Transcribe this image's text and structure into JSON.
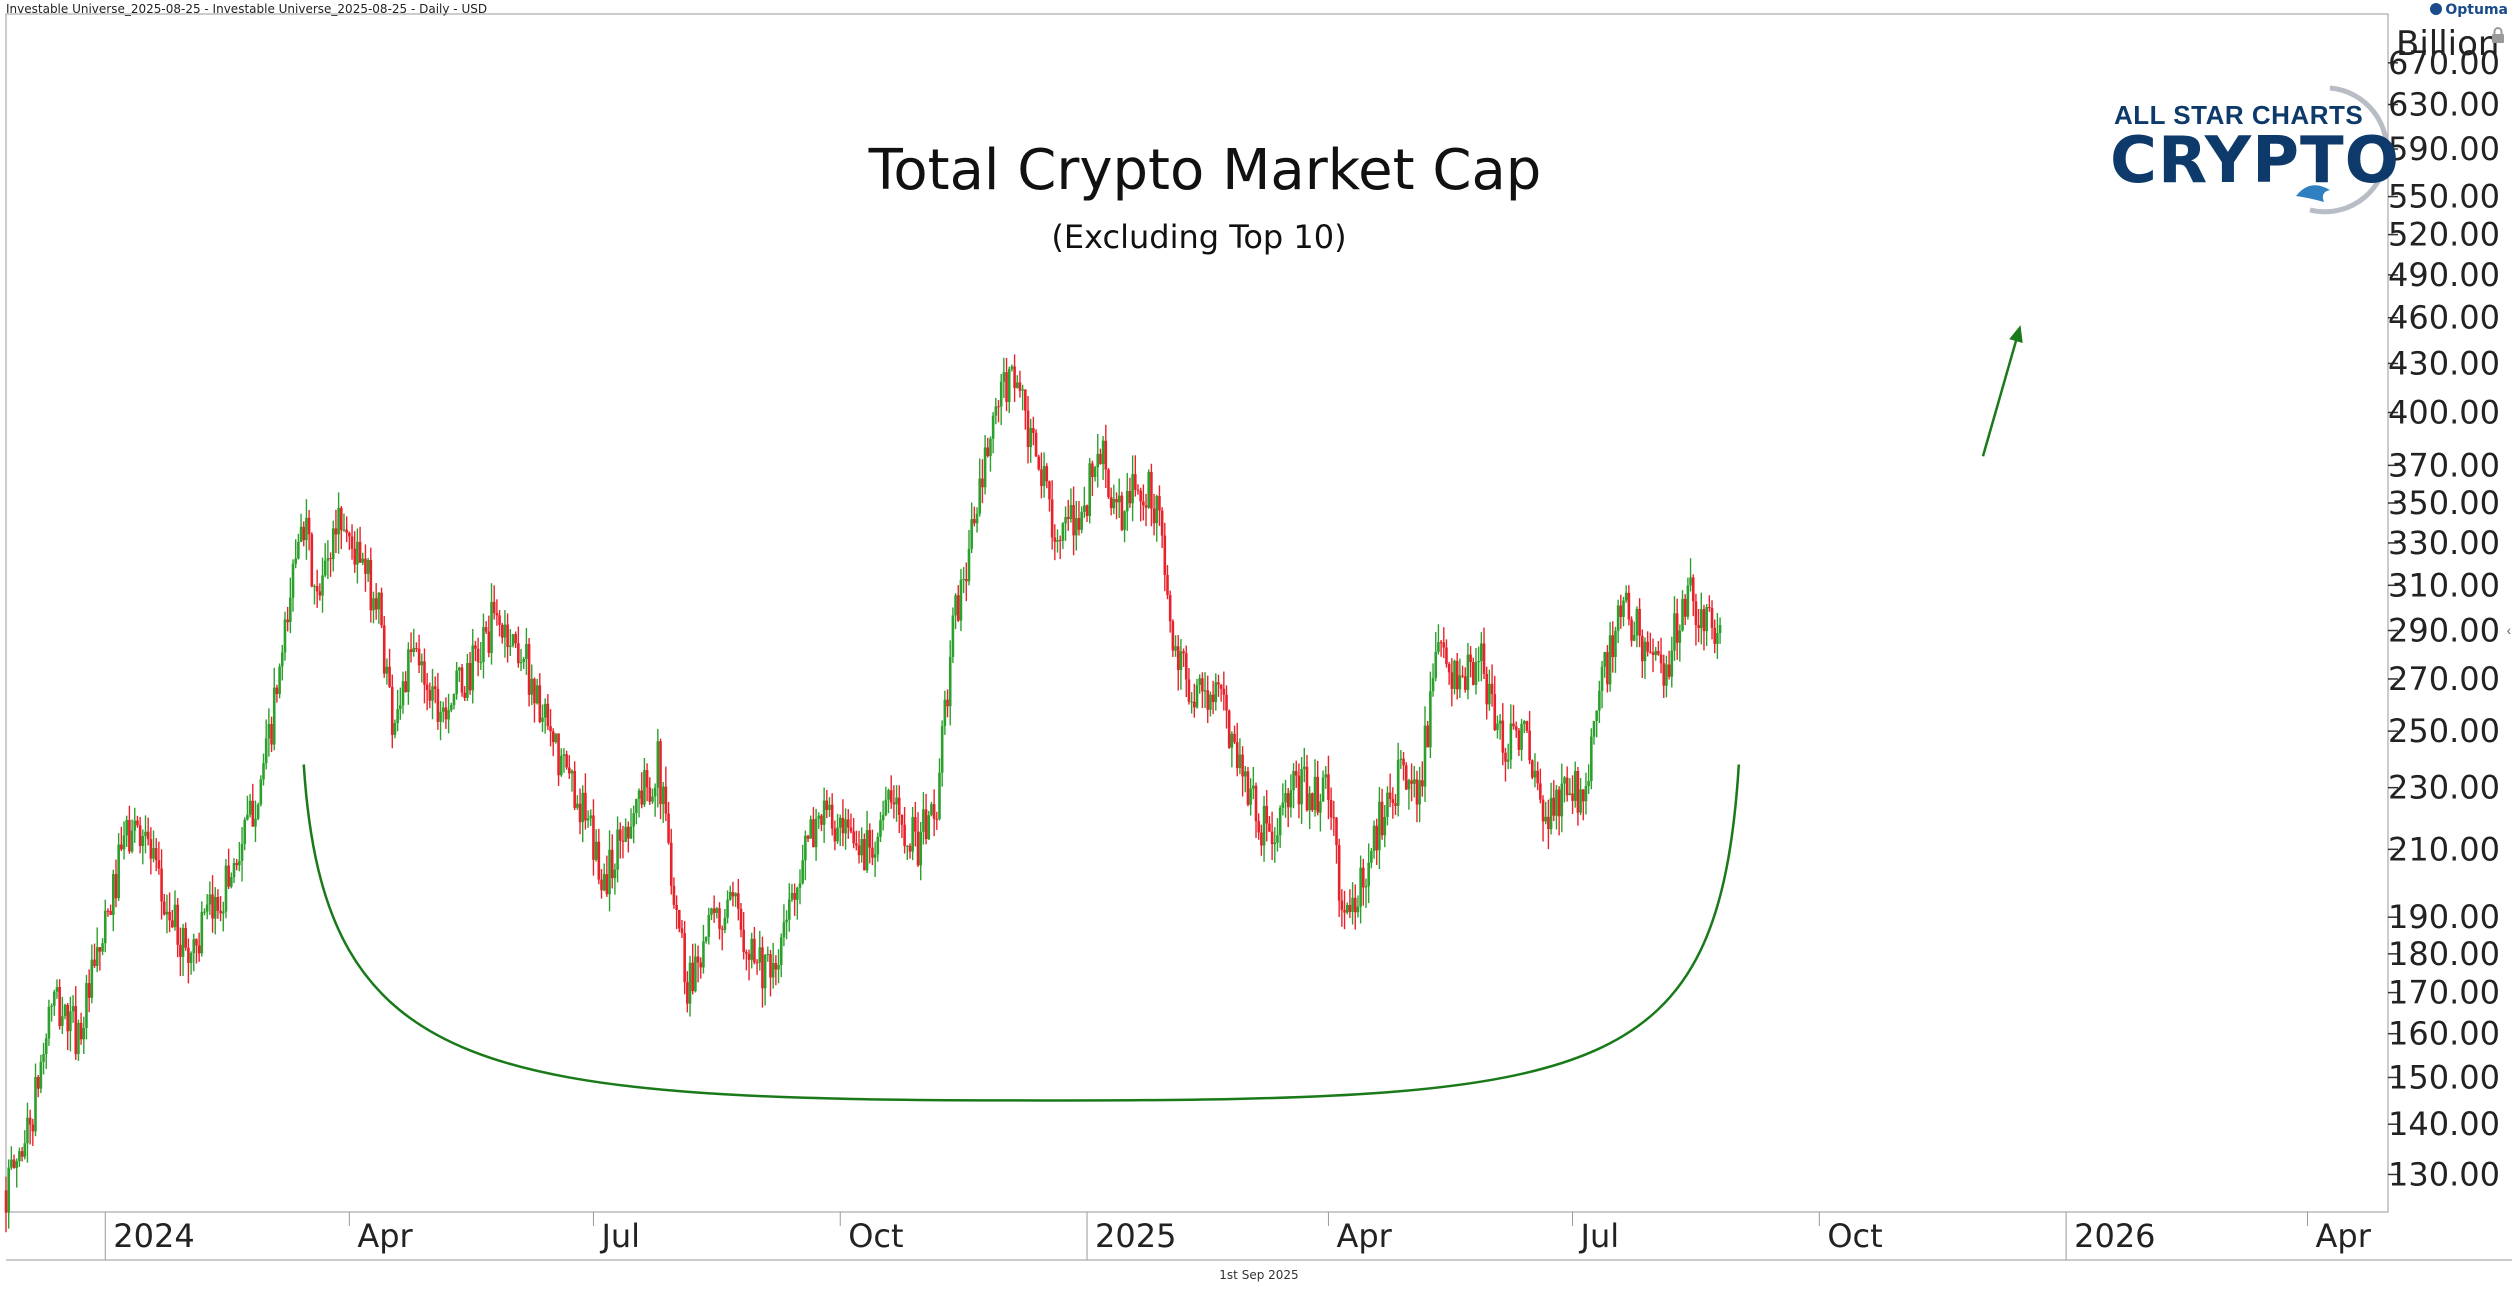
{
  "header": {
    "left_text": "Investable Universe_2025-08-25 - Investable Universe_2025-08-25 - Daily - USD",
    "brand": "Optuma"
  },
  "logo": {
    "line1": "ALL STAR CHARTS",
    "line2": "CRYPTO"
  },
  "footer_text": "1st Sep 2025",
  "colors": {
    "up": "#2ca02c",
    "down": "#e8222a",
    "annotation": "#1a7a1a",
    "grid": "#e6e6e6",
    "axis": "#999999"
  },
  "chart_data": {
    "type": "candlestick",
    "title": "Total Crypto Market Cap",
    "subtitle": "(Excluding Top 10)",
    "y_unit": "Billion",
    "y_scale": "log",
    "ylim": [
      123,
      720
    ],
    "xlim": [
      "2023-11-25",
      "2026-05-01"
    ],
    "y_ticks": [
      130,
      140,
      150,
      160,
      170,
      180,
      190,
      210,
      230,
      250,
      270,
      290,
      310,
      330,
      350,
      370,
      400,
      430,
      460,
      490,
      520,
      550,
      590,
      630,
      670
    ],
    "x_ticks": [
      {
        "date": "2024-01-01",
        "label": "2024",
        "major": true
      },
      {
        "date": "2024-04-01",
        "label": "Apr",
        "major": false
      },
      {
        "date": "2024-07-01",
        "label": "Jul",
        "major": false
      },
      {
        "date": "2024-10-01",
        "label": "Oct",
        "major": false
      },
      {
        "date": "2025-01-01",
        "label": "2025",
        "major": true
      },
      {
        "date": "2025-04-01",
        "label": "Apr",
        "major": false
      },
      {
        "date": "2025-07-01",
        "label": "Jul",
        "major": false
      },
      {
        "date": "2025-10-01",
        "label": "Oct",
        "major": false
      },
      {
        "date": "2026-01-01",
        "label": "2026",
        "major": true
      },
      {
        "date": "2026-04-01",
        "label": "Apr",
        "major": false
      }
    ],
    "price_path": [
      [
        "2023-11-25",
        127
      ],
      [
        "2023-12-05",
        142
      ],
      [
        "2023-12-12",
        168
      ],
      [
        "2023-12-22",
        160
      ],
      [
        "2024-01-01",
        186
      ],
      [
        "2024-01-08",
        213
      ],
      [
        "2024-01-15",
        218
      ],
      [
        "2024-01-22",
        195
      ],
      [
        "2024-02-01",
        180
      ],
      [
        "2024-02-12",
        194
      ],
      [
        "2024-02-22",
        214
      ],
      [
        "2024-03-01",
        240
      ],
      [
        "2024-03-08",
        285
      ],
      [
        "2024-03-14",
        350
      ],
      [
        "2024-03-20",
        300
      ],
      [
        "2024-03-28",
        345
      ],
      [
        "2024-04-05",
        320
      ],
      [
        "2024-04-12",
        300
      ],
      [
        "2024-04-17",
        255
      ],
      [
        "2024-04-25",
        280
      ],
      [
        "2024-05-05",
        260
      ],
      [
        "2024-05-15",
        270
      ],
      [
        "2024-05-25",
        295
      ],
      [
        "2024-06-05",
        280
      ],
      [
        "2024-06-15",
        245
      ],
      [
        "2024-06-25",
        228
      ],
      [
        "2024-07-05",
        200
      ],
      [
        "2024-07-15",
        222
      ],
      [
        "2024-07-25",
        238
      ],
      [
        "2024-08-05",
        172
      ],
      [
        "2024-08-12",
        186
      ],
      [
        "2024-08-22",
        192
      ],
      [
        "2024-09-06",
        172
      ],
      [
        "2024-09-14",
        200
      ],
      [
        "2024-09-24",
        223
      ],
      [
        "2024-10-01",
        213
      ],
      [
        "2024-10-10",
        210
      ],
      [
        "2024-10-20",
        225
      ],
      [
        "2024-10-30",
        212
      ],
      [
        "2024-11-06",
        225
      ],
      [
        "2024-11-12",
        290
      ],
      [
        "2024-11-20",
        340
      ],
      [
        "2024-11-28",
        400
      ],
      [
        "2024-12-05",
        428
      ],
      [
        "2024-12-10",
        385
      ],
      [
        "2024-12-16",
        360
      ],
      [
        "2024-12-22",
        330
      ],
      [
        "2024-12-30",
        345
      ],
      [
        "2025-01-06",
        380
      ],
      [
        "2025-01-12",
        340
      ],
      [
        "2025-01-20",
        360
      ],
      [
        "2025-01-27",
        350
      ],
      [
        "2025-02-03",
        275
      ],
      [
        "2025-02-12",
        265
      ],
      [
        "2025-02-20",
        262
      ],
      [
        "2025-03-03",
        228
      ],
      [
        "2025-03-10",
        212
      ],
      [
        "2025-03-20",
        230
      ],
      [
        "2025-04-01",
        228
      ],
      [
        "2025-04-07",
        188
      ],
      [
        "2025-04-14",
        200
      ],
      [
        "2025-04-24",
        232
      ],
      [
        "2025-05-05",
        232
      ],
      [
        "2025-05-12",
        280
      ],
      [
        "2025-05-20",
        268
      ],
      [
        "2025-05-28",
        275
      ],
      [
        "2025-06-05",
        245
      ],
      [
        "2025-06-12",
        252
      ],
      [
        "2025-06-20",
        218
      ],
      [
        "2025-06-28",
        228
      ],
      [
        "2025-07-05",
        230
      ],
      [
        "2025-07-12",
        268
      ],
      [
        "2025-07-20",
        300
      ],
      [
        "2025-07-28",
        285
      ],
      [
        "2025-08-03",
        268
      ],
      [
        "2025-08-10",
        298
      ],
      [
        "2025-08-14",
        305
      ],
      [
        "2025-08-20",
        292
      ],
      [
        "2025-08-25",
        288
      ]
    ],
    "annotations": [
      {
        "type": "arc",
        "start": [
          "2024-03-15",
          238
        ],
        "bottom": [
          "2024-12-16",
          145
        ],
        "end": [
          "2025-09-01",
          238
        ]
      },
      {
        "type": "arrow",
        "from": [
          "2025-12-01",
          375
        ],
        "to": [
          "2025-12-15",
          455
        ]
      }
    ]
  }
}
